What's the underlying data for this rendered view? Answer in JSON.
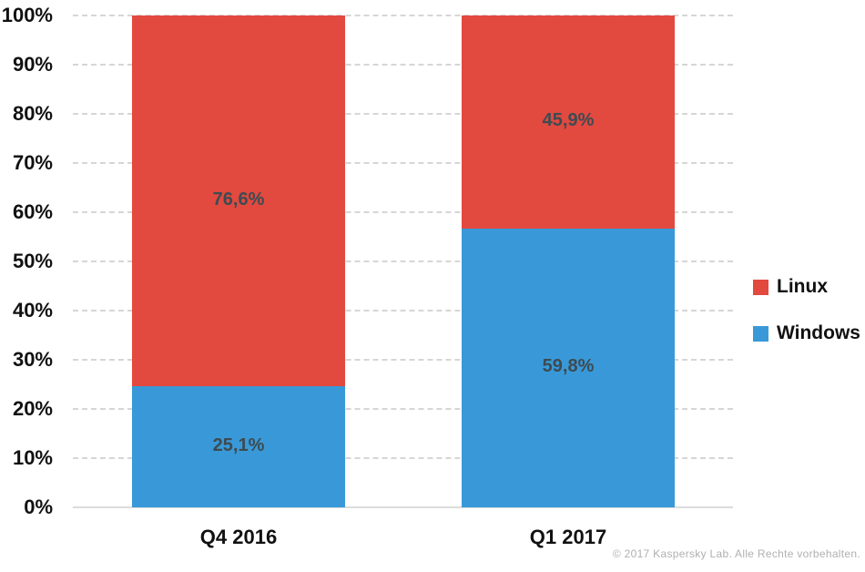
{
  "chart_data": {
    "type": "bar",
    "subtype": "stacked-normalized-column",
    "title": "",
    "categories": [
      "Q4 2016",
      "Q1 2017"
    ],
    "series": [
      {
        "name": "Linux",
        "color": "#e2493f",
        "values": [
          76.6,
          45.9
        ],
        "labels": [
          "76,6%",
          "45,9%"
        ]
      },
      {
        "name": "Windows",
        "color": "#3999d8",
        "values": [
          25.1,
          59.8
        ],
        "labels": [
          "25,1%",
          "59,8%"
        ]
      }
    ],
    "stack_order_bottom_to_top": [
      "Windows",
      "Linux"
    ],
    "y_ticks": [
      "0%",
      "10%",
      "20%",
      "30%",
      "40%",
      "50%",
      "60%",
      "70%",
      "80%",
      "90%",
      "100%"
    ],
    "ylim": [
      0,
      100
    ],
    "grid": "horizontal-dashed",
    "legend_position": "right",
    "value_label_color": "#3d4b52",
    "axis_text_color": "#111111"
  },
  "legend": {
    "items": [
      {
        "label": "Linux",
        "color": "#e2493f"
      },
      {
        "label": "Windows",
        "color": "#3999d8"
      }
    ]
  },
  "footer": {
    "copyright": "© 2017 Kaspersky Lab. Alle Rechte vorbehalten."
  }
}
